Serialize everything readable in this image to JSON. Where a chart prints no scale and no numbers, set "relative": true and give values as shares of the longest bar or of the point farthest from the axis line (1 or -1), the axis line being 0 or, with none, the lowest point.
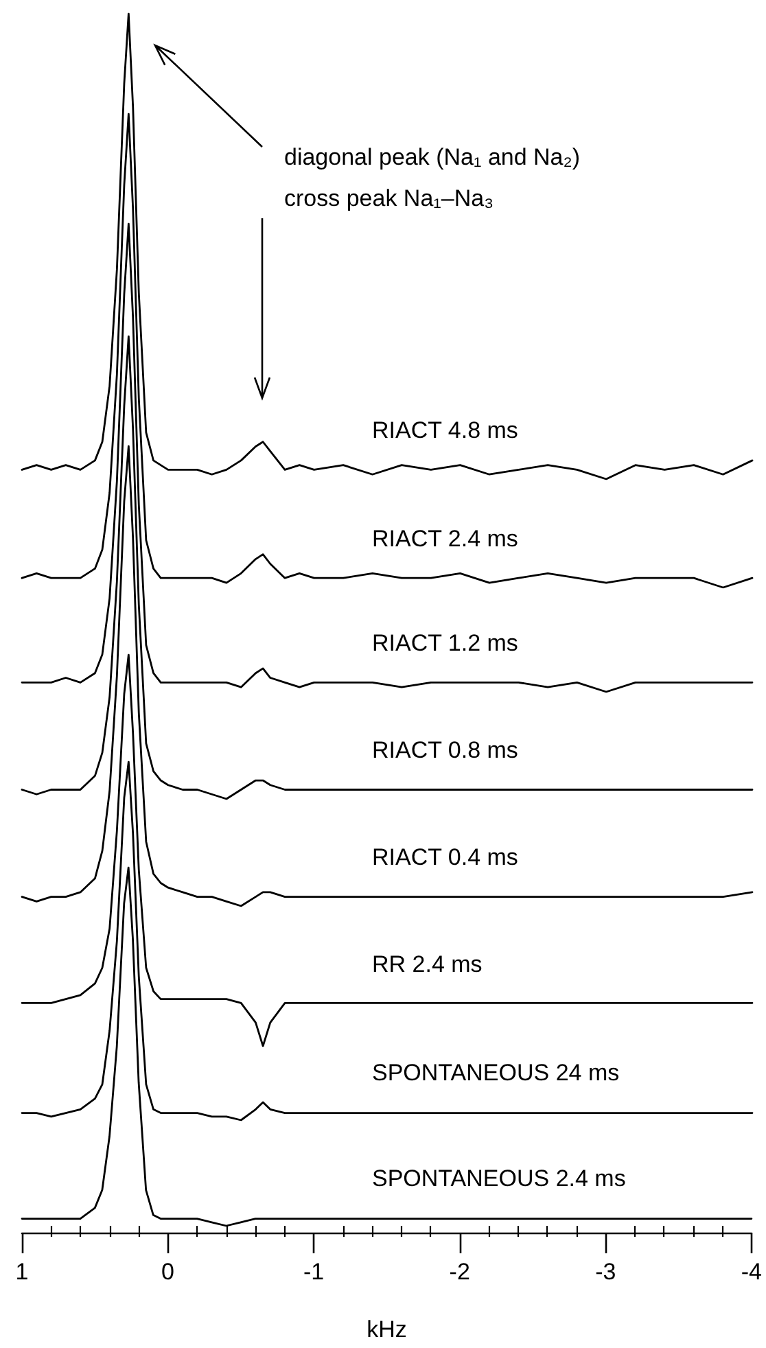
{
  "chart_data": [
    {
      "type": "line",
      "relative": true,
      "marker": "none",
      "tick_labels": false,
      "xlim": [
        1,
        -4
      ],
      "annotations": [
        "diagonal peak (Na₁ and Na₂)",
        "cross peak Na₁–Na₃"
      ],
      "x": [
        1,
        0.9,
        0.8,
        0.7,
        0.6,
        0.5,
        0.45,
        0.4,
        0.35,
        0.3,
        0.27,
        0.24,
        0.2,
        0.15,
        0.1,
        0.05,
        0,
        -0.1,
        -0.2,
        -0.3,
        -0.4,
        -0.5,
        -0.6,
        -0.65,
        -0.7,
        -0.8,
        -0.9,
        -1,
        -1.2,
        -1.4,
        -1.6,
        -1.8,
        -2,
        -2.2,
        -2.4,
        -2.6,
        -2.8,
        -3,
        -3.2,
        -3.4,
        -3.6,
        -3.8,
        -4
      ],
      "series": [
        {
          "name": "RIACT 4.8 ms",
          "color": "#000000",
          "values": [
            0.02,
            0.03,
            0.02,
            0.03,
            0.02,
            0.04,
            0.08,
            0.2,
            0.45,
            0.85,
            1,
            0.8,
            0.4,
            0.1,
            0.04,
            0.03,
            0.02,
            0.02,
            0.02,
            0.01,
            0.02,
            0.04,
            0.07,
            0.08,
            0.06,
            0.02,
            0.03,
            0.02,
            0.03,
            0.01,
            0.03,
            0.02,
            0.03,
            0.01,
            0.02,
            0.03,
            0.02,
            0,
            0.03,
            0.02,
            0.03,
            0.01,
            0.04
          ]
        }
      ]
    },
    {
      "type": "line",
      "relative": true,
      "marker": "none",
      "tick_labels": false,
      "xlim": [
        1,
        -4
      ],
      "x": [
        1,
        0.9,
        0.8,
        0.7,
        0.6,
        0.5,
        0.45,
        0.4,
        0.35,
        0.3,
        0.27,
        0.24,
        0.2,
        0.15,
        0.1,
        0.05,
        0,
        -0.1,
        -0.2,
        -0.3,
        -0.4,
        -0.5,
        -0.6,
        -0.65,
        -0.7,
        -0.8,
        -0.9,
        -1,
        -1.2,
        -1.4,
        -1.6,
        -1.8,
        -2,
        -2.2,
        -2.4,
        -2.6,
        -2.8,
        -3,
        -3.2,
        -3.4,
        -3.6,
        -3.8,
        -4
      ],
      "series": [
        {
          "name": "RIACT 2.4 ms",
          "color": "#000000",
          "values": [
            0.02,
            0.03,
            0.02,
            0.02,
            0.02,
            0.04,
            0.08,
            0.2,
            0.45,
            0.85,
            1,
            0.8,
            0.4,
            0.1,
            0.04,
            0.02,
            0.02,
            0.02,
            0.02,
            0.02,
            0.01,
            0.03,
            0.06,
            0.07,
            0.05,
            0.02,
            0.03,
            0.02,
            0.02,
            0.03,
            0.02,
            0.02,
            0.03,
            0.01,
            0.02,
            0.03,
            0.02,
            0.01,
            0.02,
            0.02,
            0.02,
            0,
            0.02
          ]
        }
      ]
    },
    {
      "type": "line",
      "relative": true,
      "marker": "none",
      "tick_labels": false,
      "xlim": [
        1,
        -4
      ],
      "x": [
        1,
        0.9,
        0.8,
        0.7,
        0.6,
        0.5,
        0.45,
        0.4,
        0.35,
        0.3,
        0.27,
        0.24,
        0.2,
        0.15,
        0.1,
        0.05,
        0,
        -0.1,
        -0.2,
        -0.3,
        -0.4,
        -0.5,
        -0.6,
        -0.65,
        -0.7,
        -0.8,
        -0.9,
        -1,
        -1.2,
        -1.4,
        -1.6,
        -1.8,
        -2,
        -2.2,
        -2.4,
        -2.6,
        -2.8,
        -3,
        -3.2,
        -3.4,
        -3.6,
        -3.8,
        -4
      ],
      "series": [
        {
          "name": "RIACT 1.2 ms",
          "color": "#000000",
          "values": [
            0.02,
            0.02,
            0.02,
            0.03,
            0.02,
            0.04,
            0.08,
            0.2,
            0.45,
            0.85,
            1,
            0.8,
            0.4,
            0.1,
            0.04,
            0.02,
            0.02,
            0.02,
            0.02,
            0.02,
            0.02,
            0.01,
            0.04,
            0.05,
            0.03,
            0.02,
            0.01,
            0.02,
            0.02,
            0.02,
            0.01,
            0.02,
            0.02,
            0.02,
            0.02,
            0.01,
            0.02,
            0,
            0.02,
            0.02,
            0.02,
            0.02,
            0.02
          ]
        }
      ]
    },
    {
      "type": "line",
      "relative": true,
      "marker": "none",
      "tick_labels": false,
      "xlim": [
        1,
        -4
      ],
      "x": [
        1,
        0.9,
        0.8,
        0.7,
        0.6,
        0.5,
        0.45,
        0.4,
        0.35,
        0.3,
        0.27,
        0.24,
        0.2,
        0.15,
        0.1,
        0.05,
        0,
        -0.1,
        -0.2,
        -0.3,
        -0.4,
        -0.5,
        -0.6,
        -0.65,
        -0.7,
        -0.8,
        -0.9,
        -1,
        -1.2,
        -1.4,
        -1.6,
        -1.8,
        -2,
        -2.2,
        -2.4,
        -2.6,
        -2.8,
        -3,
        -3.2,
        -3.4,
        -3.6,
        -3.8,
        -4
      ],
      "series": [
        {
          "name": "RIACT 0.8 ms",
          "color": "#000000",
          "values": [
            0.02,
            0.01,
            0.02,
            0.02,
            0.02,
            0.05,
            0.1,
            0.22,
            0.47,
            0.85,
            1,
            0.8,
            0.42,
            0.12,
            0.06,
            0.04,
            0.03,
            0.02,
            0.02,
            0.01,
            0,
            0.02,
            0.04,
            0.04,
            0.03,
            0.02,
            0.02,
            0.02,
            0.02,
            0.02,
            0.02,
            0.02,
            0.02,
            0.02,
            0.02,
            0.02,
            0.02,
            0.02,
            0.02,
            0.02,
            0.02,
            0.02,
            0.02
          ]
        }
      ]
    },
    {
      "type": "line",
      "relative": true,
      "marker": "none",
      "tick_labels": false,
      "xlim": [
        1,
        -4
      ],
      "x": [
        1,
        0.9,
        0.8,
        0.7,
        0.6,
        0.5,
        0.45,
        0.4,
        0.35,
        0.3,
        0.27,
        0.24,
        0.2,
        0.15,
        0.1,
        0.05,
        0,
        -0.1,
        -0.2,
        -0.3,
        -0.4,
        -0.5,
        -0.6,
        -0.65,
        -0.7,
        -0.8,
        -0.9,
        -1,
        -1.2,
        -1.4,
        -1.6,
        -1.8,
        -2,
        -2.2,
        -2.4,
        -2.6,
        -2.8,
        -3,
        -3.2,
        -3.4,
        -3.6,
        -3.8,
        -4
      ],
      "series": [
        {
          "name": "RIACT 0.4 ms",
          "color": "#000000",
          "values": [
            0.02,
            0.01,
            0.02,
            0.02,
            0.03,
            0.06,
            0.12,
            0.25,
            0.5,
            0.88,
            1,
            0.8,
            0.42,
            0.14,
            0.07,
            0.05,
            0.04,
            0.03,
            0.02,
            0.02,
            0.01,
            0,
            0.02,
            0.03,
            0.03,
            0.02,
            0.02,
            0.02,
            0.02,
            0.02,
            0.02,
            0.02,
            0.02,
            0.02,
            0.02,
            0.02,
            0.02,
            0.02,
            0.02,
            0.02,
            0.02,
            0.02,
            0.03
          ]
        }
      ]
    },
    {
      "type": "line",
      "relative": true,
      "marker": "none",
      "tick_labels": false,
      "xlim": [
        1,
        -4
      ],
      "x": [
        1,
        0.9,
        0.8,
        0.7,
        0.6,
        0.5,
        0.45,
        0.4,
        0.35,
        0.3,
        0.27,
        0.24,
        0.2,
        0.15,
        0.1,
        0.05,
        0,
        -0.1,
        -0.2,
        -0.3,
        -0.4,
        -0.5,
        -0.6,
        -0.65,
        -0.7,
        -0.8,
        -0.9,
        -1,
        -1.2,
        -1.4,
        -1.6,
        -1.8,
        -2,
        -2.2,
        -2.4,
        -2.6,
        -2.8,
        -3,
        -3.2,
        -3.4,
        -3.6,
        -3.8,
        -4
      ],
      "series": [
        {
          "name": "RR 2.4 ms",
          "color": "#000000",
          "values": [
            0.11,
            0.11,
            0.11,
            0.12,
            0.13,
            0.16,
            0.2,
            0.3,
            0.55,
            0.9,
            1,
            0.8,
            0.45,
            0.2,
            0.14,
            0.12,
            0.12,
            0.12,
            0.12,
            0.12,
            0.12,
            0.11,
            0.06,
            0,
            0.06,
            0.11,
            0.11,
            0.11,
            0.11,
            0.11,
            0.11,
            0.11,
            0.11,
            0.11,
            0.11,
            0.11,
            0.11,
            0.11,
            0.11,
            0.11,
            0.11,
            0.11,
            0.11
          ]
        }
      ]
    },
    {
      "type": "line",
      "relative": true,
      "marker": "none",
      "tick_labels": false,
      "xlim": [
        1,
        -4
      ],
      "x": [
        1,
        0.9,
        0.8,
        0.7,
        0.6,
        0.5,
        0.45,
        0.4,
        0.35,
        0.3,
        0.27,
        0.24,
        0.2,
        0.15,
        0.1,
        0.05,
        0,
        -0.1,
        -0.2,
        -0.3,
        -0.4,
        -0.5,
        -0.6,
        -0.65,
        -0.7,
        -0.8,
        -0.9,
        -1,
        -1.2,
        -1.4,
        -1.6,
        -1.8,
        -2,
        -2.2,
        -2.4,
        -2.6,
        -2.8,
        -3,
        -3.2,
        -3.4,
        -3.6,
        -3.8,
        -4
      ],
      "series": [
        {
          "name": "SPONTANEOUS 24 ms",
          "color": "#000000",
          "values": [
            0.02,
            0.02,
            0.01,
            0.02,
            0.03,
            0.06,
            0.1,
            0.25,
            0.5,
            0.9,
            1,
            0.8,
            0.4,
            0.1,
            0.03,
            0.02,
            0.02,
            0.02,
            0.02,
            0.01,
            0.01,
            0,
            0.03,
            0.05,
            0.03,
            0.02,
            0.02,
            0.02,
            0.02,
            0.02,
            0.02,
            0.02,
            0.02,
            0.02,
            0.02,
            0.02,
            0.02,
            0.02,
            0.02,
            0.02,
            0.02,
            0.02,
            0.02
          ]
        }
      ]
    },
    {
      "type": "line",
      "relative": true,
      "marker": "none",
      "tick_labels": "x",
      "xlim": [
        1,
        -4
      ],
      "xlabel": "kHz",
      "xticks": [
        1,
        {
          "value": 0.8,
          "label": null
        },
        {
          "value": 0.6,
          "label": null
        },
        {
          "value": 0.4,
          "label": null
        },
        {
          "value": 0.2,
          "label": null
        },
        0,
        {
          "value": -0.2,
          "label": null
        },
        {
          "value": -0.4,
          "label": null
        },
        {
          "value": -0.6,
          "label": null
        },
        {
          "value": -0.8,
          "label": null
        },
        -1,
        {
          "value": -1.2,
          "label": null
        },
        {
          "value": -1.4,
          "label": null
        },
        {
          "value": -1.6,
          "label": null
        },
        {
          "value": -1.8,
          "label": null
        },
        -2,
        {
          "value": -2.2,
          "label": null
        },
        {
          "value": -2.4,
          "label": null
        },
        {
          "value": -2.6,
          "label": null
        },
        {
          "value": -2.8,
          "label": null
        },
        -3,
        {
          "value": -3.2,
          "label": null
        },
        {
          "value": -3.4,
          "label": null
        },
        {
          "value": -3.6,
          "label": null
        },
        {
          "value": -3.8,
          "label": null
        },
        -4
      ],
      "x": [
        1,
        0.9,
        0.8,
        0.7,
        0.6,
        0.5,
        0.45,
        0.4,
        0.35,
        0.3,
        0.27,
        0.24,
        0.2,
        0.15,
        0.1,
        0.05,
        0,
        -0.1,
        -0.2,
        -0.3,
        -0.4,
        -0.5,
        -0.6,
        -0.65,
        -0.7,
        -0.8,
        -0.9,
        -1,
        -1.2,
        -1.4,
        -1.6,
        -1.8,
        -2,
        -2.2,
        -2.4,
        -2.6,
        -2.8,
        -3,
        -3.2,
        -3.4,
        -3.6,
        -3.8,
        -4
      ],
      "series": [
        {
          "name": "SPONTANEOUS 2.4 ms",
          "color": "#000000",
          "values": [
            0.02,
            0.02,
            0.02,
            0.02,
            0.02,
            0.05,
            0.1,
            0.25,
            0.5,
            0.9,
            1,
            0.8,
            0.4,
            0.1,
            0.03,
            0.02,
            0.02,
            0.02,
            0.02,
            0.01,
            0,
            0.01,
            0.02,
            0.02,
            0.02,
            0.02,
            0.02,
            0.02,
            0.02,
            0.02,
            0.02,
            0.02,
            0.02,
            0.02,
            0.02,
            0.02,
            0.02,
            0.02,
            0.02,
            0.02,
            0.02,
            0.02,
            0.02
          ]
        }
      ]
    }
  ]
}
